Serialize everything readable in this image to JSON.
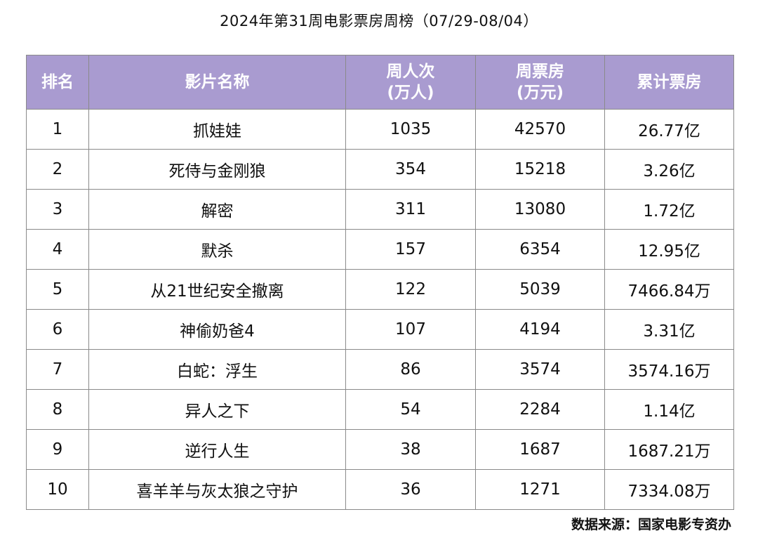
{
  "title": "2024年第31周电影票房周榜（07/29-08/04）",
  "columns": {
    "rank": "排名",
    "film": "影片名称",
    "admissions_line1": "周人次",
    "admissions_line2": "(万人)",
    "weekly_line1": "周票房",
    "weekly_line2": "(万元)",
    "cumulative": "累计票房"
  },
  "rows": [
    {
      "rank": "1",
      "film": "抓娃娃",
      "admissions": "1035",
      "weekly": "42570",
      "cumulative": "26.77亿"
    },
    {
      "rank": "2",
      "film": "死侍与金刚狼",
      "admissions": "354",
      "weekly": "15218",
      "cumulative": "3.26亿"
    },
    {
      "rank": "3",
      "film": "解密",
      "admissions": "311",
      "weekly": "13080",
      "cumulative": "1.72亿"
    },
    {
      "rank": "4",
      "film": "默杀",
      "admissions": "157",
      "weekly": "6354",
      "cumulative": "12.95亿"
    },
    {
      "rank": "5",
      "film": "从21世纪安全撤离",
      "admissions": "122",
      "weekly": "5039",
      "cumulative": "7466.84万"
    },
    {
      "rank": "6",
      "film": "神偷奶爸4",
      "admissions": "107",
      "weekly": "4194",
      "cumulative": "3.31亿"
    },
    {
      "rank": "7",
      "film": "白蛇：浮生",
      "admissions": "86",
      "weekly": "3574",
      "cumulative": "3574.16万"
    },
    {
      "rank": "8",
      "film": "异人之下",
      "admissions": "54",
      "weekly": "2284",
      "cumulative": "1.14亿"
    },
    {
      "rank": "9",
      "film": "逆行人生",
      "admissions": "38",
      "weekly": "1687",
      "cumulative": "1687.21万"
    },
    {
      "rank": "10",
      "film": "喜羊羊与灰太狼之守护",
      "admissions": "36",
      "weekly": "1271",
      "cumulative": "7334.08万"
    }
  ],
  "source": "数据来源：国家电影专资办",
  "colors": {
    "header_bg": "#a99bd0",
    "header_text": "#ffffff",
    "grid": "#8a8a8a"
  }
}
